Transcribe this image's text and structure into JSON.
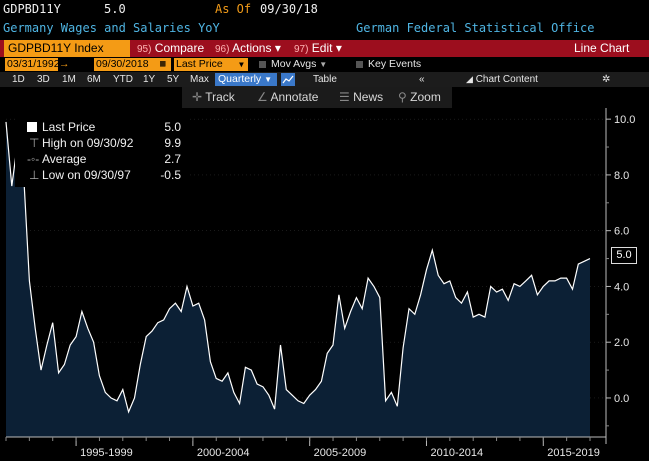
{
  "header": {
    "ticker": "GDPBD11Y",
    "last_value": "5.0",
    "as_of_label": "As Of",
    "as_of_date": "09/30/18",
    "description": "Germany Wages and Salaries YoY",
    "source": "German Federal Statistical Office"
  },
  "toolbar": {
    "security": "GDPBD11Y Index",
    "compare_num": "95)",
    "compare": "Compare",
    "actions_num": "96)",
    "actions": "Actions",
    "edit_num": "97)",
    "edit": "Edit",
    "chart_type": "Line Chart"
  },
  "options": {
    "start_date": "03/31/1992",
    "end_date": "09/30/2018",
    "field": "Last Price",
    "mov_avgs": "Mov Avgs",
    "key_events": "Key Events"
  },
  "ranges": {
    "items": [
      "1D",
      "3D",
      "1M",
      "6M",
      "YTD",
      "1Y",
      "5Y",
      "Max"
    ],
    "frequency": "Quarterly",
    "table": "Table",
    "chart_content": "Chart Content"
  },
  "tools": {
    "track": "Track",
    "annotate": "Annotate",
    "news": "News",
    "zoom": "Zoom"
  },
  "legend": {
    "rows": [
      {
        "label": "Last Price",
        "value": "5.0"
      },
      {
        "label": "High on 09/30/92",
        "value": "9.9"
      },
      {
        "label": "Average",
        "value": "2.7"
      },
      {
        "label": "Low on 09/30/97",
        "value": "-0.5"
      }
    ]
  },
  "price_tag": "5.0",
  "colors": {
    "accent_orange": "#f49b15",
    "toolbar_red": "#9c0e1e",
    "series_fill": "#0c2035",
    "series_line": "#ffffff",
    "header_cyan": "#4fb5e3"
  },
  "chart_data": {
    "type": "area",
    "x_start": "1992-Q1",
    "frequency": "quarterly",
    "xlabels": [
      "1995-1999",
      "2000-2004",
      "2005-2009",
      "2010-2014",
      "2015-2019"
    ],
    "yticks": [
      "10.0",
      "8.0",
      "6.0",
      "4.0",
      "2.0",
      "0.0"
    ],
    "ylim": [
      -1.4,
      10.4
    ],
    "series": [
      {
        "values": [
          9.9,
          7.6,
          9.2,
          8.1,
          4.2,
          2.5,
          1.0,
          1.9,
          2.7,
          0.9,
          1.2,
          1.9,
          2.2,
          3.1,
          2.5,
          2.0,
          0.8,
          0.2,
          0.0,
          -0.1,
          0.3,
          -0.5,
          0.0,
          1.2,
          2.2,
          2.4,
          2.7,
          2.8,
          3.2,
          3.4,
          3.1,
          4.0,
          3.3,
          3.4,
          2.8,
          1.3,
          0.7,
          0.6,
          0.9,
          0.2,
          -0.2,
          1.1,
          1.0,
          0.5,
          0.4,
          0.1,
          -0.4,
          1.9,
          0.3,
          0.1,
          -0.1,
          -0.2,
          0.1,
          0.3,
          0.6,
          1.6,
          1.9,
          3.7,
          2.5,
          3.1,
          3.6,
          3.2,
          4.3,
          4.0,
          3.6,
          -0.1,
          0.2,
          -0.3,
          1.8,
          3.2,
          3.0,
          3.7,
          4.6,
          5.3,
          4.4,
          4.1,
          4.2,
          3.6,
          3.4,
          3.8,
          2.9,
          3.0,
          2.9,
          4.0,
          3.8,
          3.9,
          3.5,
          4.1,
          4.0,
          4.2,
          4.4,
          3.7,
          4.0,
          4.2,
          4.2,
          4.3,
          4.3,
          3.9,
          4.8,
          4.9,
          5.0
        ]
      }
    ],
    "legend_position": "top-left"
  }
}
